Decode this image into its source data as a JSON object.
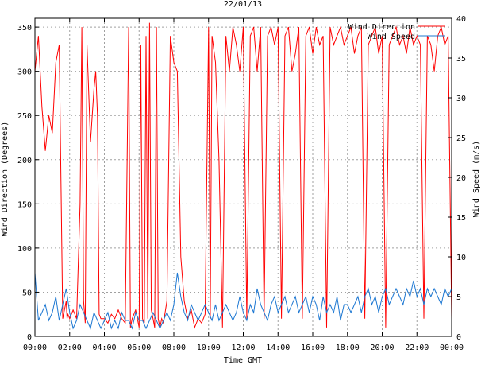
{
  "chart_data": {
    "type": "line",
    "title": "22/01/13",
    "xlabel": "Time GMT",
    "ylabel_left": "Wind Direction (Degrees)",
    "ylabel_right": "Wind Speed (m/s)",
    "x_ticks": [
      "00:00",
      "02:00",
      "04:00",
      "06:00",
      "08:00",
      "10:00",
      "12:00",
      "14:00",
      "16:00",
      "18:00",
      "20:00",
      "22:00",
      "00:00"
    ],
    "xlim_hours": [
      0,
      24
    ],
    "y_left_ticks": [
      "0",
      "50",
      "100",
      "150",
      "200",
      "250",
      "300",
      "350"
    ],
    "y_left_lim": [
      0,
      360
    ],
    "y_right_ticks": [
      "0",
      "5",
      "10",
      "15",
      "20",
      "25",
      "30",
      "35",
      "40"
    ],
    "y_right_lim": [
      0,
      40
    ],
    "grid": true,
    "legend_position": "top-right",
    "series": [
      {
        "name": "Wind Direction",
        "axis": "left",
        "color": "#ff0000",
        "x_hours": [
          0.0,
          0.2,
          0.4,
          0.6,
          0.8,
          1.0,
          1.2,
          1.4,
          1.6,
          1.7,
          1.8,
          1.85,
          1.9,
          2.0,
          2.2,
          2.4,
          2.6,
          2.7,
          2.8,
          2.9,
          3.0,
          3.2,
          3.4,
          3.5,
          3.6,
          3.7,
          3.8,
          4.0,
          4.2,
          4.4,
          4.6,
          4.8,
          5.0,
          5.2,
          5.4,
          5.5,
          5.6,
          5.7,
          5.8,
          6.0,
          6.1,
          6.2,
          6.3,
          6.4,
          6.5,
          6.6,
          6.7,
          6.8,
          6.9,
          7.0,
          7.1,
          7.2,
          7.3,
          7.4,
          7.6,
          7.8,
          8.0,
          8.2,
          8.4,
          8.6,
          8.8,
          9.0,
          9.2,
          9.4,
          9.6,
          9.8,
          10.0,
          10.1,
          10.2,
          10.4,
          10.6,
          10.8,
          11.0,
          11.2,
          11.4,
          11.6,
          11.8,
          12.0,
          12.2,
          12.4,
          12.6,
          12.8,
          13.0,
          13.2,
          13.4,
          13.6,
          13.8,
          14.0,
          14.2,
          14.4,
          14.6,
          14.8,
          15.0,
          15.2,
          15.4,
          15.6,
          15.8,
          16.0,
          16.2,
          16.4,
          16.6,
          16.8,
          17.0,
          17.2,
          17.4,
          17.6,
          17.8,
          18.0,
          18.2,
          18.4,
          18.6,
          18.8,
          19.0,
          19.2,
          19.4,
          19.6,
          19.8,
          20.0,
          20.2,
          20.4,
          20.6,
          20.8,
          21.0,
          21.2,
          21.4,
          21.6,
          21.8,
          22.0,
          22.2,
          22.4,
          22.6,
          22.8,
          23.0,
          23.2,
          23.4,
          23.6,
          23.8,
          24.0
        ],
        "values": [
          300,
          340,
          260,
          210,
          250,
          230,
          310,
          330,
          20,
          30,
          40,
          20,
          25,
          20,
          30,
          20,
          150,
          350,
          40,
          15,
          330,
          220,
          280,
          300,
          250,
          25,
          20,
          20,
          15,
          25,
          20,
          30,
          20,
          15,
          350,
          10,
          20,
          25,
          30,
          10,
          330,
          20,
          15,
          340,
          20,
          355,
          30,
          20,
          10,
          350,
          20,
          10,
          20,
          15,
          40,
          340,
          310,
          300,
          90,
          40,
          20,
          30,
          10,
          20,
          15,
          25,
          350,
          20,
          340,
          310,
          200,
          10,
          340,
          300,
          350,
          330,
          300,
          350,
          20,
          340,
          350,
          300,
          350,
          20,
          340,
          350,
          330,
          350,
          20,
          340,
          350,
          300,
          320,
          350,
          20,
          340,
          350,
          320,
          350,
          330,
          340,
          10,
          350,
          330,
          340,
          350,
          330,
          340,
          350,
          320,
          340,
          350,
          20,
          330,
          340,
          350,
          320,
          340,
          10,
          330,
          340,
          350,
          330,
          340,
          320,
          350,
          330,
          340,
          330,
          20,
          340,
          330,
          300,
          340,
          350,
          330,
          340,
          20
        ]
      },
      {
        "name": "Wind Speed",
        "axis": "right",
        "color": "#1e78d2",
        "x_hours": [
          0.0,
          0.2,
          0.4,
          0.6,
          0.8,
          1.0,
          1.2,
          1.4,
          1.6,
          1.8,
          2.0,
          2.2,
          2.4,
          2.6,
          2.8,
          3.0,
          3.2,
          3.4,
          3.6,
          3.8,
          4.0,
          4.2,
          4.4,
          4.6,
          4.8,
          5.0,
          5.2,
          5.4,
          5.6,
          5.8,
          6.0,
          6.2,
          6.4,
          6.6,
          6.8,
          7.0,
          7.2,
          7.4,
          7.6,
          7.8,
          8.0,
          8.2,
          8.4,
          8.6,
          8.8,
          9.0,
          9.2,
          9.4,
          9.6,
          9.8,
          10.0,
          10.2,
          10.4,
          10.6,
          10.8,
          11.0,
          11.2,
          11.4,
          11.6,
          11.8,
          12.0,
          12.2,
          12.4,
          12.6,
          12.8,
          13.0,
          13.2,
          13.4,
          13.6,
          13.8,
          14.0,
          14.2,
          14.4,
          14.6,
          14.8,
          15.0,
          15.2,
          15.4,
          15.6,
          15.8,
          16.0,
          16.2,
          16.4,
          16.6,
          16.8,
          17.0,
          17.2,
          17.4,
          17.6,
          17.8,
          18.0,
          18.2,
          18.4,
          18.6,
          18.8,
          19.0,
          19.2,
          19.4,
          19.6,
          19.8,
          20.0,
          20.2,
          20.4,
          20.6,
          20.8,
          21.0,
          21.2,
          21.4,
          21.6,
          21.8,
          22.0,
          22.2,
          22.4,
          22.6,
          22.8,
          23.0,
          23.2,
          23.4,
          23.6,
          23.8,
          24.0
        ],
        "values": [
          8,
          2,
          3,
          4,
          2,
          3,
          5,
          2,
          4,
          6,
          3,
          1,
          2,
          4,
          3,
          2,
          1,
          3,
          2,
          1,
          2,
          3,
          1,
          2,
          1,
          3,
          2,
          2,
          1,
          3,
          2,
          2,
          1,
          2,
          3,
          2,
          1,
          2,
          3,
          2,
          4,
          8,
          5,
          3,
          2,
          4,
          3,
          2,
          3,
          4,
          3,
          2,
          4,
          2,
          3,
          4,
          3,
          2,
          3,
          5,
          3,
          2,
          4,
          3,
          6,
          4,
          3,
          2,
          4,
          5,
          3,
          4,
          5,
          3,
          4,
          5,
          3,
          4,
          5,
          3,
          5,
          4,
          2,
          5,
          3,
          4,
          3,
          5,
          2,
          4,
          4,
          3,
          4,
          5,
          3,
          5,
          6,
          4,
          5,
          3,
          5,
          6,
          4,
          5,
          6,
          5,
          4,
          6,
          5,
          7,
          5,
          6,
          4,
          6,
          5,
          6,
          5,
          4,
          6,
          5,
          6
        ]
      }
    ]
  }
}
